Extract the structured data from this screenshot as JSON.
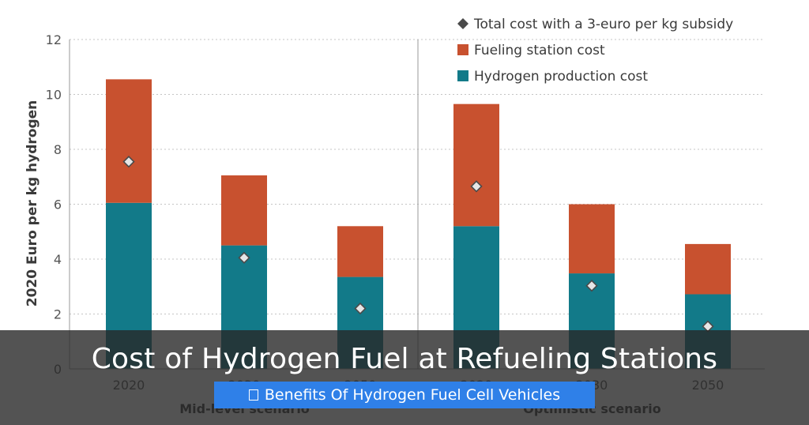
{
  "chart_data": {
    "type": "bar",
    "stacked": true,
    "ylabel": "2020 Euro per kg hydrogen",
    "ylim": [
      0,
      12
    ],
    "yticks": [
      "0",
      "2",
      "4",
      "6",
      "8",
      "10",
      "12"
    ],
    "grid": true,
    "legend_position": "top-right",
    "groups": [
      {
        "label": "Mid-level scenario",
        "categories": [
          "2020",
          "2030",
          "2050"
        ]
      },
      {
        "label": "Optimistic scenario",
        "categories": [
          "2020",
          "2030",
          "2050"
        ]
      }
    ],
    "categories": [
      "2020",
      "2030",
      "2050",
      "2020",
      "2030",
      "2050"
    ],
    "series": [
      {
        "name": "Hydrogen production cost",
        "color": "#127a89",
        "values": [
          6.05,
          4.5,
          3.35,
          5.2,
          3.48,
          2.72
        ]
      },
      {
        "name": "Fueling station cost",
        "color": "#c8512f",
        "values": [
          4.5,
          2.55,
          1.85,
          4.45,
          2.52,
          1.83
        ]
      }
    ],
    "markers": {
      "name": "Total cost with a 3-euro per kg subsidy",
      "color": "#4a4a4a",
      "values": [
        7.55,
        4.05,
        2.2,
        6.65,
        3.03,
        1.55
      ]
    }
  },
  "overlay": {
    "title": "Cost of Hydrogen Fuel at Refueling Stations",
    "link_label": "Benefits Of Hydrogen Fuel Cell Vehicles",
    "link_icon": "document-icon"
  }
}
